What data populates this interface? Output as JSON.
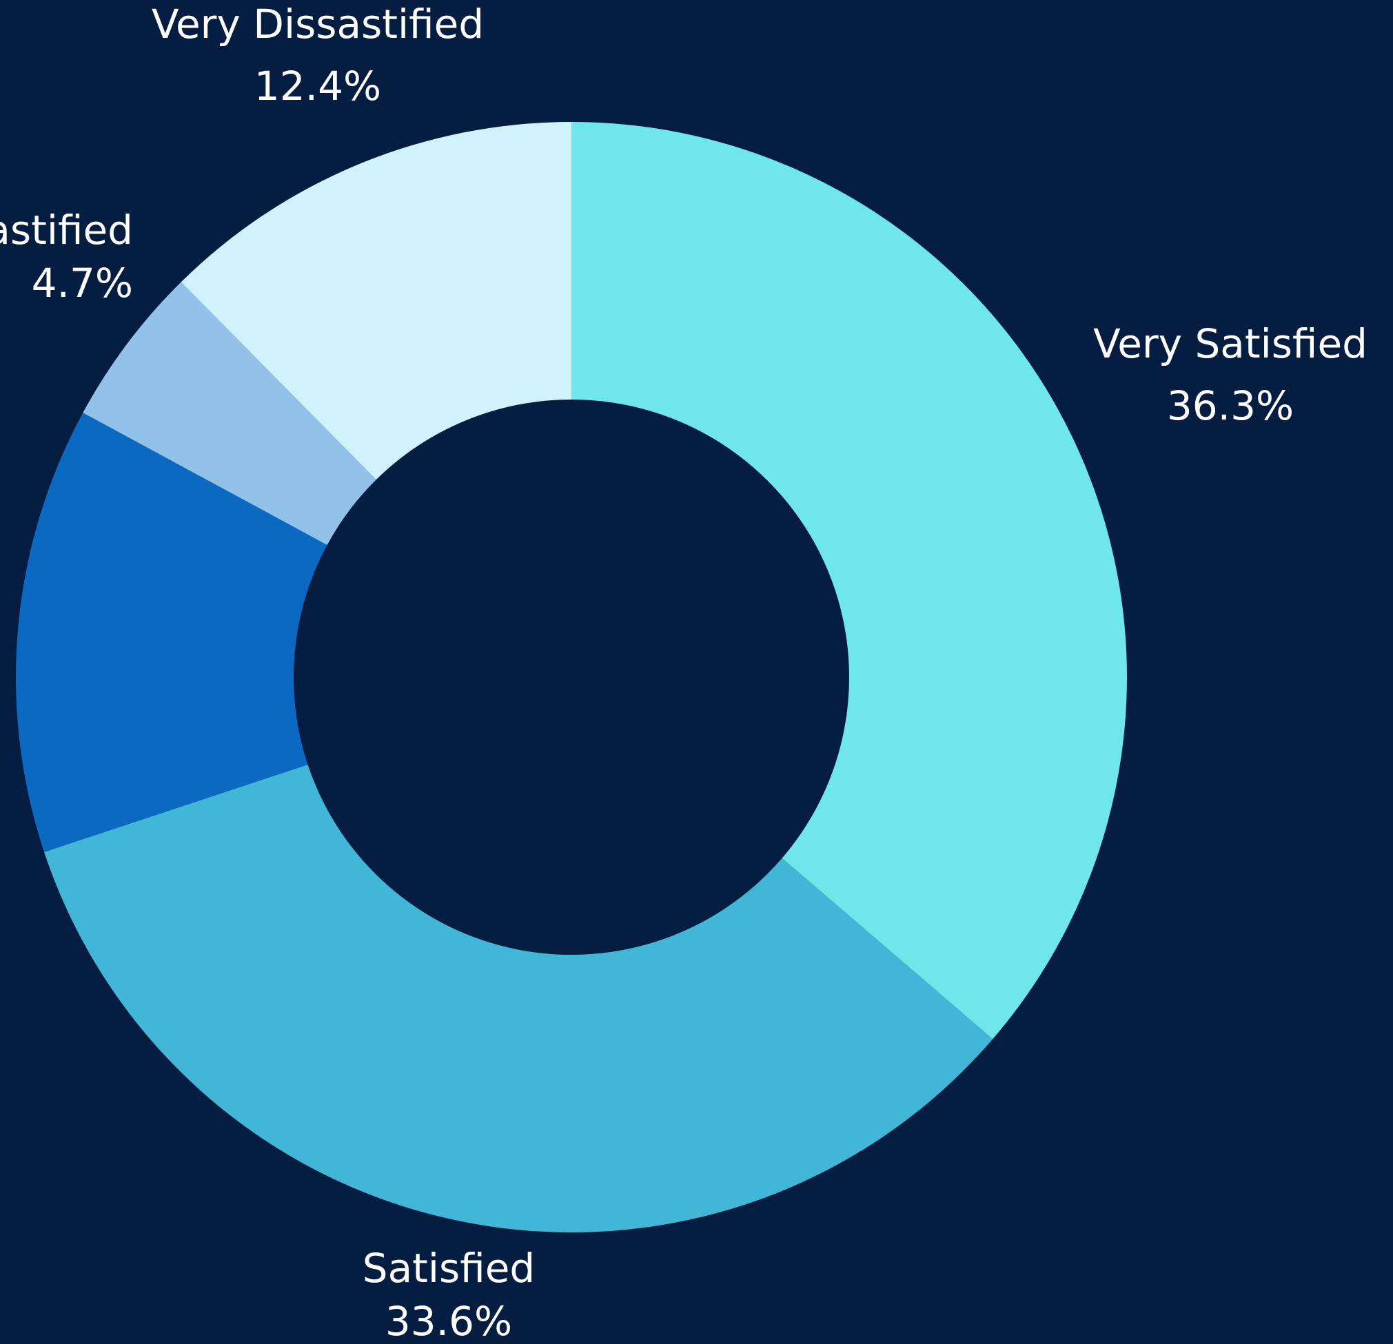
{
  "chart_data": {
    "type": "donut",
    "categories": [
      "Very Satisfied",
      "Satisfied",
      null,
      "Dissastified",
      "Very Dissastified"
    ],
    "values": [
      36.3,
      33.6,
      13.0,
      4.7,
      12.4
    ],
    "value_labels": [
      "36.3%",
      "33.6%",
      null,
      "4.7%",
      "12.4%"
    ],
    "colors": [
      "#6ee6ea",
      "#42b6d6",
      "#0b69c2",
      "#92c2ea",
      "#cff2fd"
    ]
  }
}
